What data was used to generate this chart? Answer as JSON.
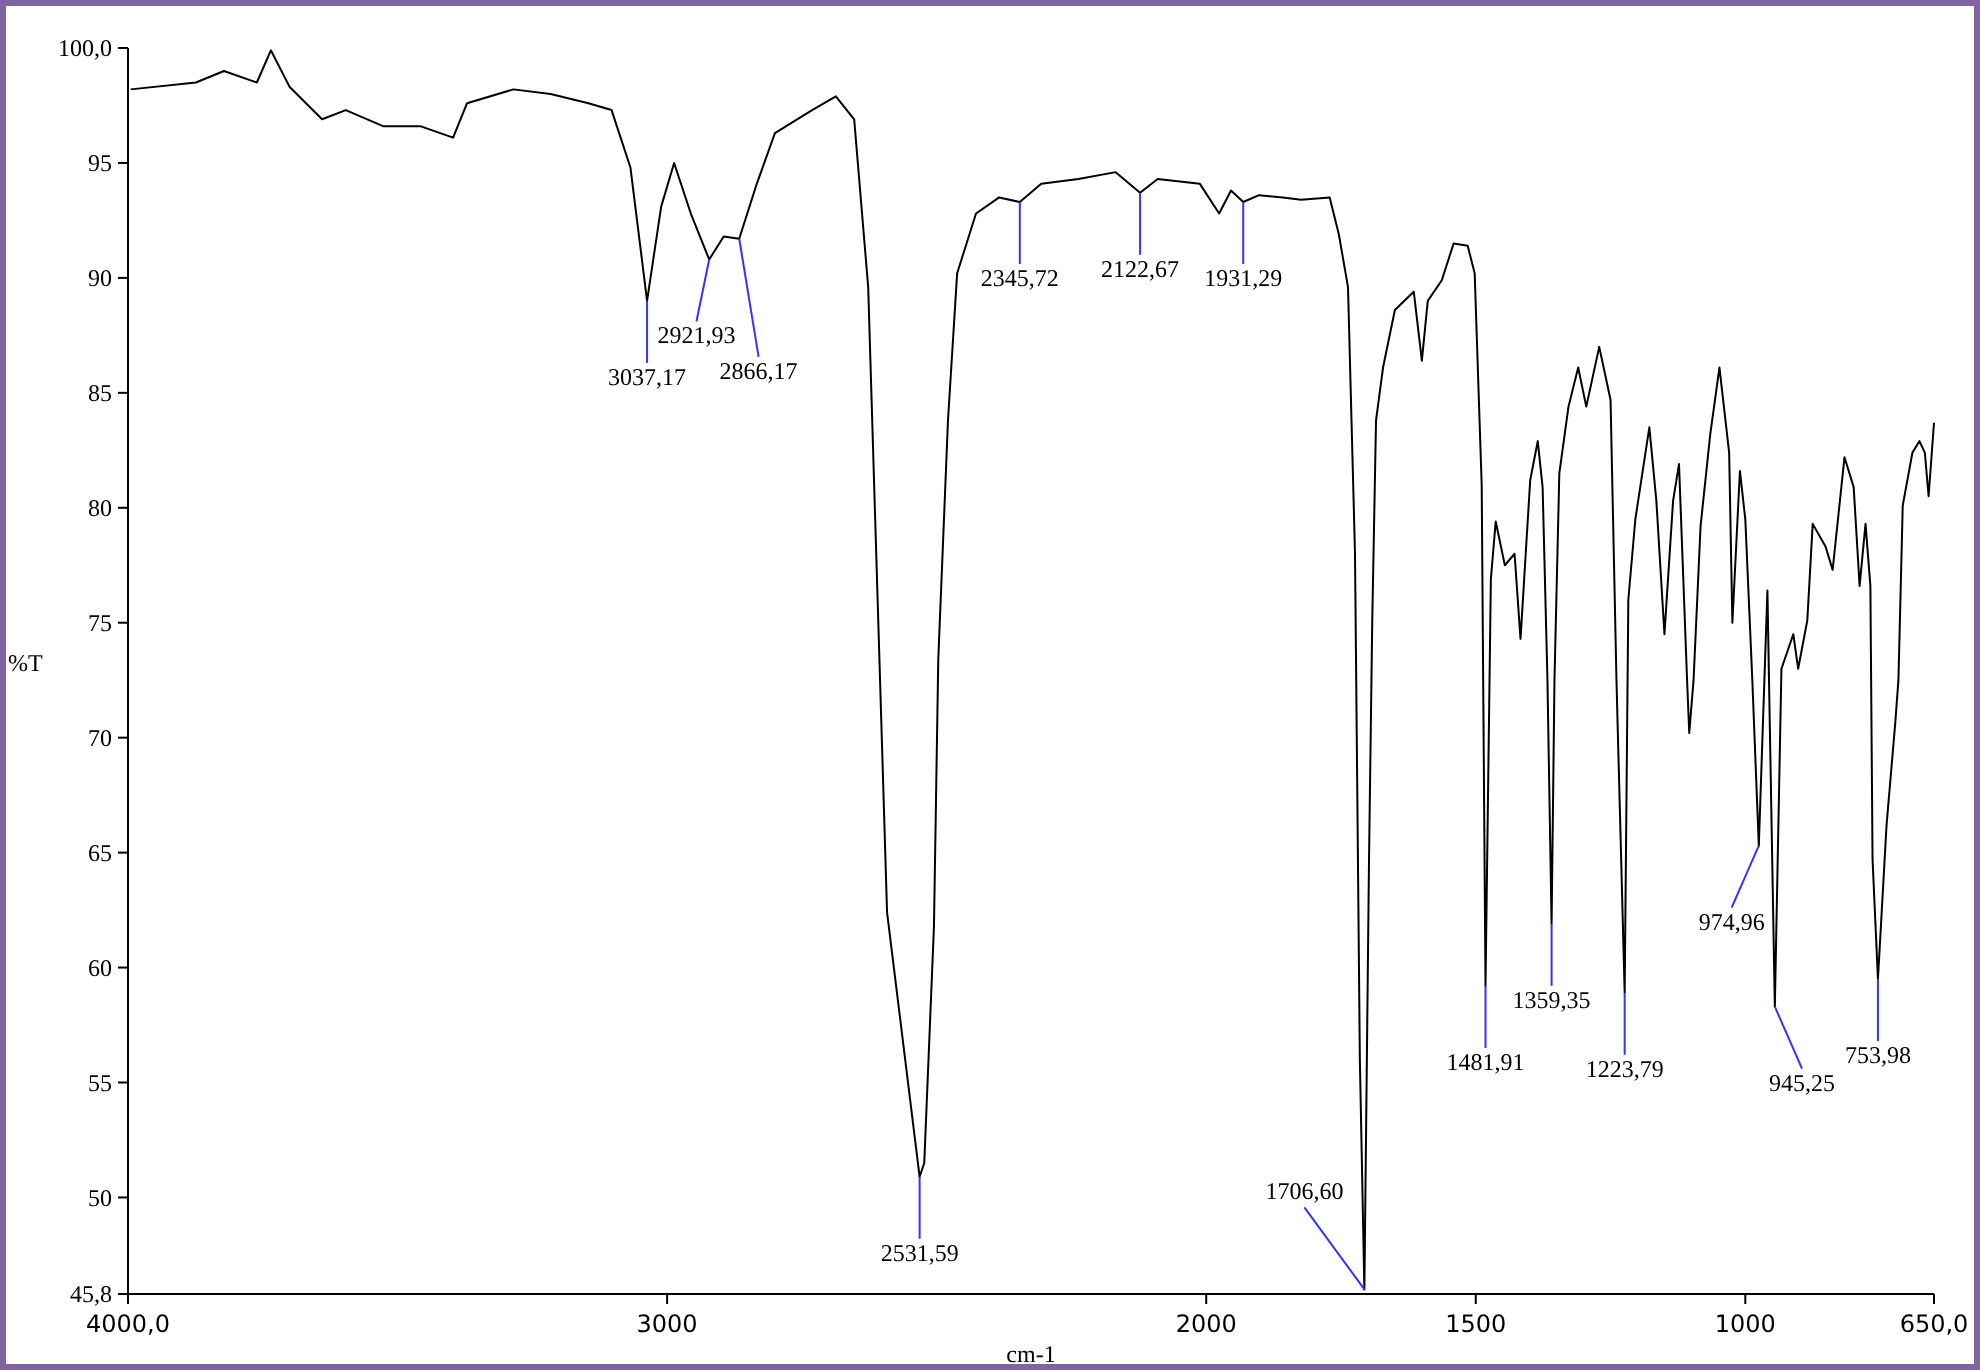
{
  "chart_data": {
    "type": "line",
    "xlabel": "cm-1",
    "ylabel": "%T",
    "xlim": [
      4000,
      650
    ],
    "ylim": [
      45.8,
      100
    ],
    "xticks": [
      {
        "value": 4000,
        "label": "4000,0"
      },
      3000,
      2000,
      1500,
      1000,
      {
        "value": 650,
        "label": "650,0"
      }
    ],
    "yticks": [
      {
        "value": 45.8,
        "label": "45,8"
      },
      50,
      55,
      60,
      65,
      70,
      75,
      80,
      85,
      90,
      95,
      {
        "value": 100,
        "label": "100,0"
      }
    ],
    "grid": false,
    "series": [
      {
        "color": "#000000",
        "x": [
          3995,
          3874,
          3822,
          3761,
          3735,
          3700,
          3640,
          3596,
          3527,
          3458,
          3397,
          3371,
          3285,
          3216,
          3146,
          3103,
          3068,
          3037.17,
          3011,
          2987,
          2956,
          2921.93,
          2895,
          2866.17,
          2835,
          2800,
          2731,
          2687,
          2653,
          2627,
          2592,
          2531.59,
          2523,
          2505,
          2497,
          2479,
          2462,
          2427,
          2384,
          2345.72,
          2306,
          2237,
          2168,
          2122.67,
          2090,
          2012,
          1976,
          1954,
          1931.29,
          1902,
          1858,
          1824,
          1771,
          1754,
          1737,
          1724,
          1715,
          1706.6,
          1698,
          1692,
          1685,
          1672,
          1650,
          1615,
          1600,
          1589,
          1563,
          1541,
          1515,
          1502,
          1489,
          1481.91,
          1472,
          1463,
          1446,
          1428,
          1417,
          1399,
          1385,
          1376,
          1367,
          1359.35,
          1354,
          1345,
          1328,
          1310,
          1295,
          1271,
          1250,
          1239,
          1223.79,
          1217,
          1204,
          1178,
          1165,
          1150,
          1134,
          1123,
          1108,
          1104,
          1096,
          1083,
          1065,
          1048,
          1030,
          1024,
          1010,
          1000,
          987,
          974.96,
          959,
          945.25,
          933,
          911,
          902,
          885,
          875,
          851,
          838,
          816,
          799,
          788,
          777,
          768,
          764,
          753.98,
          738,
          722,
          716,
          708,
          690,
          677,
          667,
          660,
          650
        ],
        "values": [
          98.2,
          98.5,
          99.0,
          98.5,
          99.9,
          98.3,
          96.9,
          97.3,
          96.6,
          96.6,
          96.1,
          97.6,
          98.2,
          98.0,
          97.6,
          97.3,
          94.8,
          89.0,
          93.1,
          95.0,
          92.8,
          90.8,
          91.8,
          91.7,
          94.0,
          96.3,
          97.3,
          97.9,
          96.9,
          89.6,
          62.4,
          50.9,
          51.5,
          61.8,
          73.4,
          83.8,
          90.2,
          92.8,
          93.5,
          93.3,
          94.1,
          94.3,
          94.6,
          93.7,
          94.3,
          94.1,
          92.8,
          93.8,
          93.3,
          93.6,
          93.5,
          93.4,
          93.5,
          91.9,
          89.6,
          78.0,
          56.0,
          46.0,
          64.7,
          75.1,
          83.8,
          86.1,
          88.6,
          89.4,
          86.4,
          89.0,
          89.9,
          91.5,
          91.4,
          90.2,
          81.0,
          59.2,
          76.9,
          79.4,
          77.5,
          78.0,
          74.3,
          81.2,
          82.9,
          80.9,
          72.5,
          61.9,
          72.5,
          81.5,
          84.4,
          86.1,
          84.4,
          87.0,
          84.7,
          72.5,
          58.9,
          76.0,
          79.5,
          83.5,
          80.3,
          74.5,
          80.3,
          81.9,
          72.5,
          70.2,
          72.5,
          79.2,
          83.2,
          86.1,
          82.4,
          75.0,
          81.6,
          79.5,
          72.5,
          65.3,
          76.4,
          58.3,
          73.0,
          74.5,
          73.0,
          75.1,
          79.3,
          78.3,
          77.3,
          82.2,
          80.9,
          76.6,
          79.3,
          76.6,
          64.7,
          59.5,
          66.2,
          70.6,
          72.5,
          80.1,
          82.4,
          82.9,
          82.4,
          80.5,
          83.7
        ]
      }
    ],
    "annotations": [
      {
        "text": "3037,17",
        "x": 3037.17,
        "y": 89.0
      },
      {
        "text": "2921,93",
        "x": 2921.93,
        "y": 90.8
      },
      {
        "text": "2866,17",
        "x": 2866.17,
        "y": 91.7
      },
      {
        "text": "2531,59",
        "x": 2531.59,
        "y": 50.9
      },
      {
        "text": "2345,72",
        "x": 2345.72,
        "y": 93.3
      },
      {
        "text": "2122,67",
        "x": 2122.67,
        "y": 93.7
      },
      {
        "text": "1931,29",
        "x": 1931.29,
        "y": 93.3
      },
      {
        "text": "1706,60",
        "x": 1706.6,
        "y": 46.0
      },
      {
        "text": "1481,91",
        "x": 1481.91,
        "y": 59.2
      },
      {
        "text": "1359,35",
        "x": 1359.35,
        "y": 61.9
      },
      {
        "text": "1223,79",
        "x": 1223.79,
        "y": 58.9
      },
      {
        "text": "974,96",
        "x": 974.96,
        "y": 65.3
      },
      {
        "text": "945,25",
        "x": 945.25,
        "y": 58.3
      },
      {
        "text": "753,98",
        "x": 753.98,
        "y": 59.5
      }
    ]
  }
}
